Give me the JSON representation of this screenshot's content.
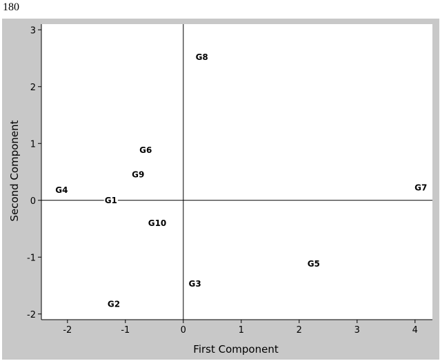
{
  "page_number": "180",
  "chart_data": {
    "type": "scatter",
    "title": "",
    "xlabel": "First Component",
    "ylabel": "Second Component",
    "xlim": [
      -2.45,
      4.3
    ],
    "ylim": [
      -2.1,
      3.1
    ],
    "xticks": [
      -2,
      -1,
      0,
      1,
      2,
      3,
      4
    ],
    "yticks": [
      -2,
      -1,
      0,
      1,
      2,
      3
    ],
    "reference_lines": {
      "x": 0,
      "y": 0
    },
    "grid": false,
    "points": [
      {
        "label": "G1",
        "x": -1.25,
        "y": 0.0
      },
      {
        "label": "G2",
        "x": -1.2,
        "y": -1.83
      },
      {
        "label": "G3",
        "x": 0.2,
        "y": -1.47
      },
      {
        "label": "G4",
        "x": -2.1,
        "y": 0.18
      },
      {
        "label": "G5",
        "x": 2.25,
        "y": -1.12
      },
      {
        "label": "G6",
        "x": -0.65,
        "y": 0.88
      },
      {
        "label": "G7",
        "x": 4.1,
        "y": 0.22
      },
      {
        "label": "G8",
        "x": 0.32,
        "y": 2.52
      },
      {
        "label": "G9",
        "x": -0.78,
        "y": 0.45
      },
      {
        "label": "G10",
        "x": -0.45,
        "y": -0.4
      }
    ]
  }
}
